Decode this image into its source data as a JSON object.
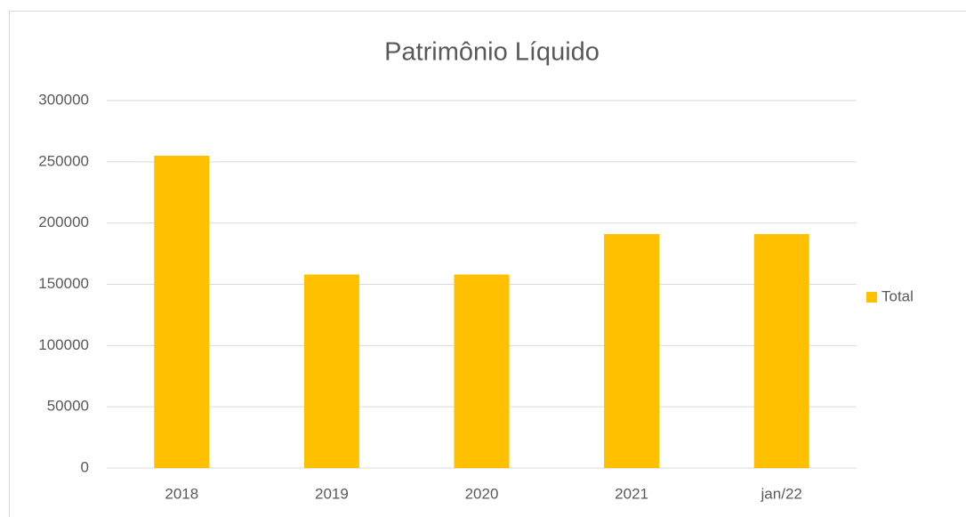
{
  "chart_data": {
    "type": "bar",
    "title": "Patrimônio Líquido",
    "categories": [
      "2018",
      "2019",
      "2020",
      "2021",
      "jan/22"
    ],
    "series": [
      {
        "name": "Total",
        "color": "#ffc000",
        "values": [
          255000,
          158000,
          158000,
          191000,
          191000
        ]
      }
    ],
    "ylim": [
      0,
      300000
    ],
    "yticks": [
      0,
      50000,
      100000,
      150000,
      200000,
      250000,
      300000
    ],
    "grid": true,
    "legend": "right"
  }
}
